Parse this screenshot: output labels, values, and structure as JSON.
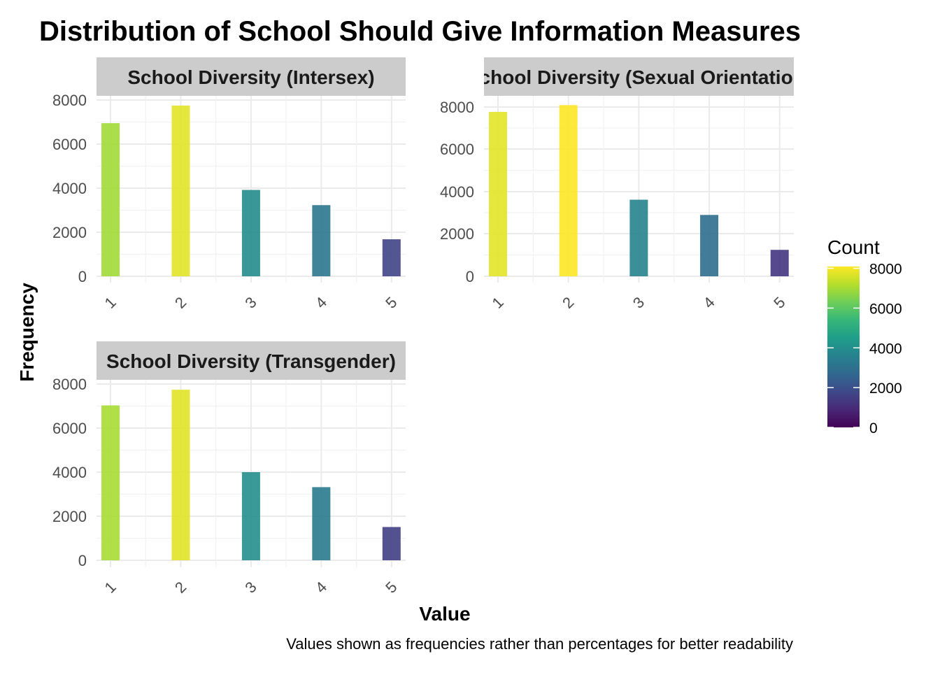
{
  "chart_data": {
    "type": "bar",
    "title": "Distribution of School Should Give Information Measures",
    "xlabel": "Value",
    "ylabel": "Frequency",
    "caption": "Values shown as frequencies rather than percentages for better readability",
    "categories": [
      "1",
      "2",
      "3",
      "4",
      "5"
    ],
    "ylim": [
      0,
      8000
    ],
    "yticks": [
      "0",
      "2000",
      "4000",
      "6000",
      "8000"
    ],
    "grid": true,
    "facets": [
      {
        "strip": "School Diversity (Intersex)",
        "values": [
          6950,
          7750,
          3920,
          3230,
          1680
        ]
      },
      {
        "strip": "School Diversity (Sexual Orientation)",
        "values": [
          7770,
          8090,
          3620,
          2900,
          1250
        ]
      },
      {
        "strip": "School Diversity (Transgender)",
        "values": [
          7030,
          7740,
          4000,
          3320,
          1510
        ]
      }
    ],
    "legend": {
      "title": "Count",
      "position": "right",
      "ticks": [
        "0",
        "2000",
        "4000",
        "6000",
        "8000"
      ],
      "range": [
        0,
        8090
      ],
      "palette": "viridis"
    }
  }
}
